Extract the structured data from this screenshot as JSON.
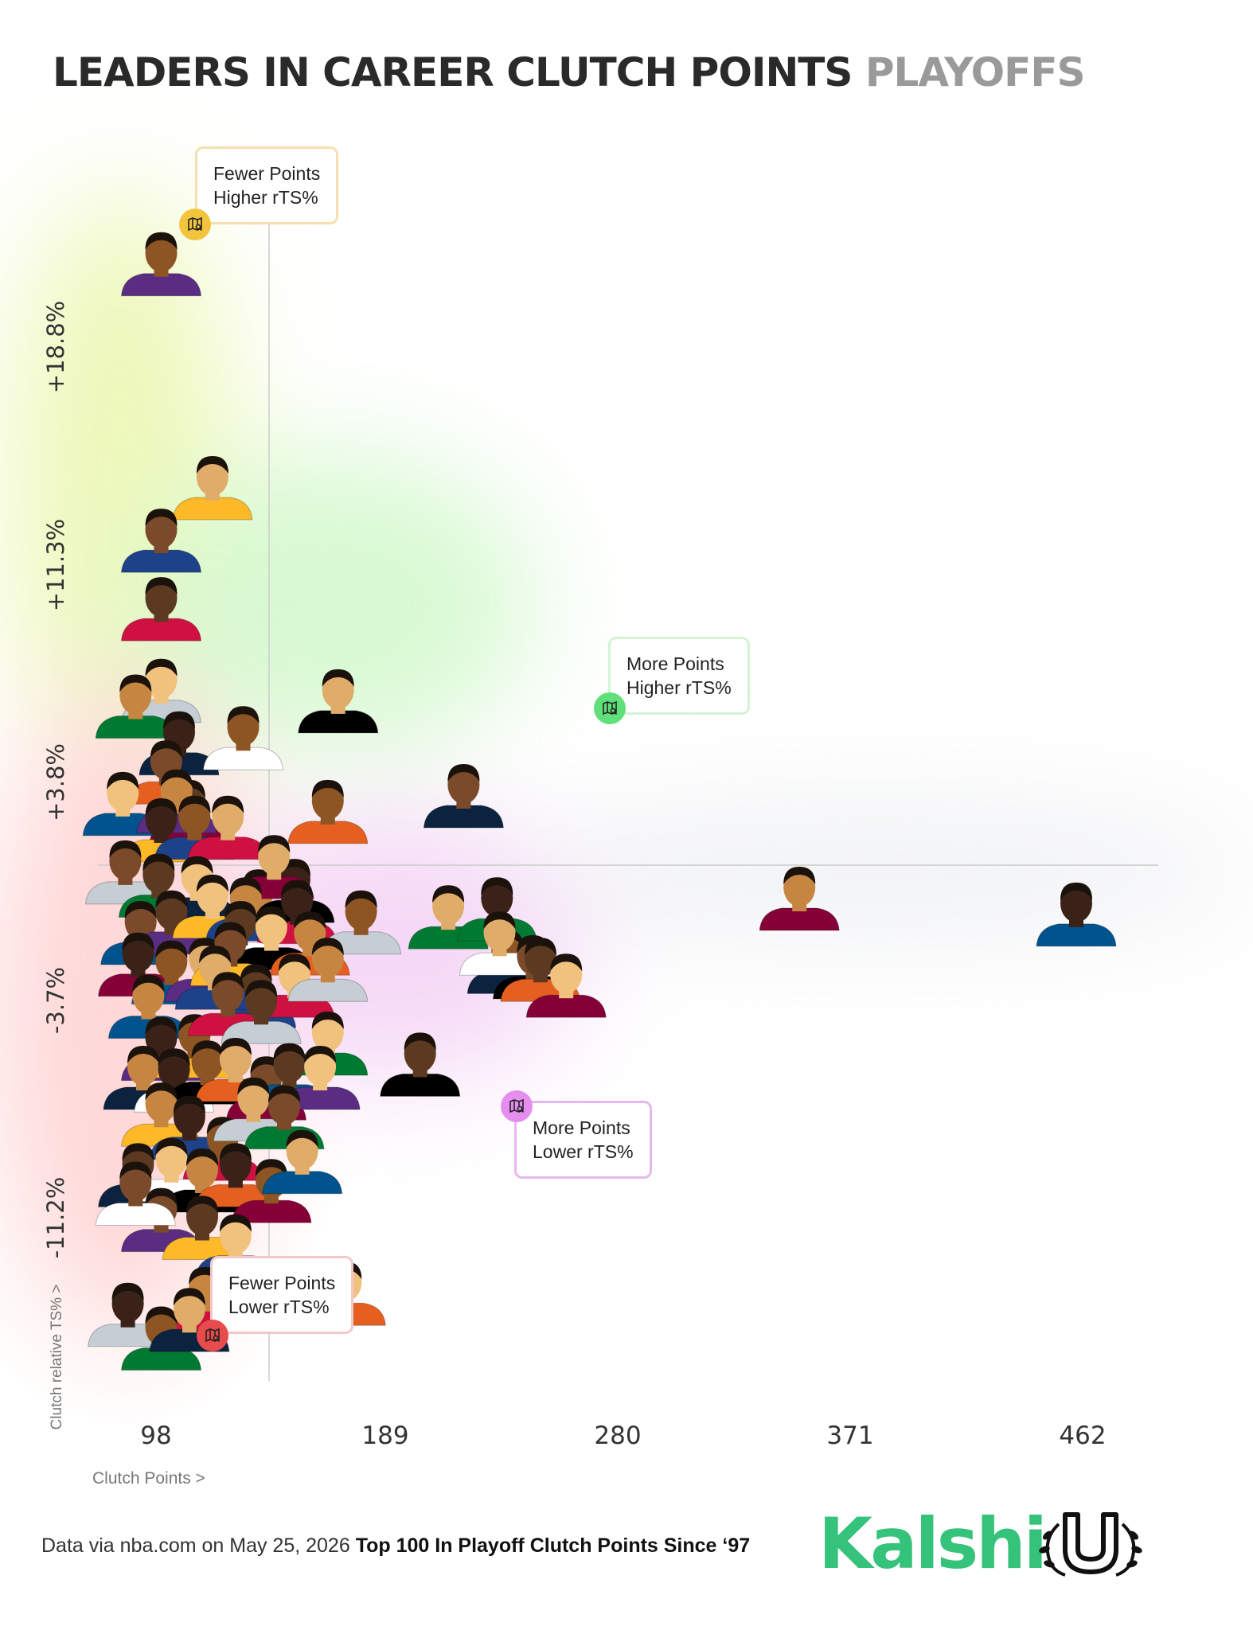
{
  "title": {
    "main": "LEADERS IN CAREER CLUTCH POINTS",
    "accent": "PLAYOFFS"
  },
  "callouts": {
    "top_left": {
      "line1": "Fewer Points",
      "line2": "Higher rTS%"
    },
    "top_right": {
      "line1": "More Points",
      "line2": "Higher rTS%"
    },
    "bottom_right": {
      "line1": "More Points",
      "line2": "Lower rTS%"
    },
    "bottom_left": {
      "line1": "Fewer Points",
      "line2": "Lower rTS%"
    }
  },
  "colors": {
    "yellow": "#f3c53f",
    "green": "#5fe07a",
    "magenta": "#e58ef0",
    "red": "#e84b4b",
    "border_yellow": "#f6dfae",
    "border_green": "#d3f3d3",
    "border_magenta": "#e9b7f0",
    "border_red": "#f3c8c8",
    "brand": "#35c27a"
  },
  "footer": {
    "source": "Data via nba.com on May 25, 2026",
    "caption": "Top 100 In Playoff Clutch Points Since ‘97"
  },
  "brand": {
    "name": "Kalshi"
  },
  "chart_data": {
    "type": "scatter",
    "title": "LEADERS IN CAREER CLUTCH POINTS PLAYOFFS",
    "xlabel": "Clutch Points >",
    "ylabel": "Clutch relative TS% >",
    "xticks": [
      "98",
      "189",
      "280",
      "371",
      "462"
    ],
    "yticks": [
      "+18.8%",
      "+11.3%",
      "+3.8%",
      "-3.7%",
      "-11.2%"
    ],
    "xlim": [
      88,
      502
    ],
    "ylim": [
      -17.6,
      28.5
    ],
    "reference_lines": {
      "x": 143,
      "y": 0
    },
    "grid": false,
    "legend": "none",
    "points": [
      {
        "x": 113,
        "y": 25.0
      },
      {
        "x": 133,
        "y": 16.5
      },
      {
        "x": 113,
        "y": 14.5
      },
      {
        "x": 113,
        "y": 11.9
      },
      {
        "x": 113,
        "y": 8.8
      },
      {
        "x": 103,
        "y": 8.2
      },
      {
        "x": 120,
        "y": 6.8
      },
      {
        "x": 145,
        "y": 7.0
      },
      {
        "x": 182,
        "y": 8.4
      },
      {
        "x": 115,
        "y": 5.7
      },
      {
        "x": 124,
        "y": 4.2
      },
      {
        "x": 98,
        "y": 4.5
      },
      {
        "x": 119,
        "y": 4.6
      },
      {
        "x": 113,
        "y": 3.5
      },
      {
        "x": 126,
        "y": 3.6
      },
      {
        "x": 139,
        "y": 3.6
      },
      {
        "x": 99,
        "y": 1.9
      },
      {
        "x": 112,
        "y": 1.4
      },
      {
        "x": 127,
        "y": 1.3
      },
      {
        "x": 151,
        "y": 0.8
      },
      {
        "x": 165,
        "y": 1.2
      },
      {
        "x": 178,
        "y": 4.2
      },
      {
        "x": 157,
        "y": 2.1
      },
      {
        "x": 105,
        "y": -0.4
      },
      {
        "x": 117,
        "y": 0.0
      },
      {
        "x": 133,
        "y": 0.6
      },
      {
        "x": 146,
        "y": 0.5
      },
      {
        "x": 166,
        "y": 0.4
      },
      {
        "x": 191,
        "y": 0.0
      },
      {
        "x": 225,
        "y": 0.2
      },
      {
        "x": 231,
        "y": 4.8
      },
      {
        "x": 144,
        "y": -0.4
      },
      {
        "x": 156,
        "y": -0.6
      },
      {
        "x": 171,
        "y": -0.8
      },
      {
        "x": 104,
        "y": -1.6
      },
      {
        "x": 117,
        "y": -1.9
      },
      {
        "x": 130,
        "y": -1.8
      },
      {
        "x": 140,
        "y": -1.2
      },
      {
        "x": 150,
        "y": -2.8
      },
      {
        "x": 165,
        "y": -2.4
      },
      {
        "x": 178,
        "y": -1.8
      },
      {
        "x": 244,
        "y": 0.5
      },
      {
        "x": 248,
        "y": -1.5
      },
      {
        "x": 245,
        "y": -0.8
      },
      {
        "x": 258,
        "y": -1.7
      },
      {
        "x": 261,
        "y": -1.8
      },
      {
        "x": 271,
        "y": -2.4
      },
      {
        "x": 108,
        "y": -3.2
      },
      {
        "x": 113,
        "y": -4.8
      },
      {
        "x": 126,
        "y": -4.7
      },
      {
        "x": 134,
        "y": -2.1
      },
      {
        "x": 139,
        "y": -3.1
      },
      {
        "x": 152,
        "y": -3.4
      },
      {
        "x": 178,
        "y": -4.6
      },
      {
        "x": 106,
        "y": -5.9
      },
      {
        "x": 118,
        "y": -6.0
      },
      {
        "x": 131,
        "y": -5.7
      },
      {
        "x": 142,
        "y": -5.6
      },
      {
        "x": 154,
        "y": -6.3
      },
      {
        "x": 163,
        "y": -5.8
      },
      {
        "x": 175,
        "y": -5.9
      },
      {
        "x": 113,
        "y": -7.3
      },
      {
        "x": 124,
        "y": -7.8
      },
      {
        "x": 137,
        "y": -8.6
      },
      {
        "x": 149,
        "y": -7.1
      },
      {
        "x": 161,
        "y": -7.4
      },
      {
        "x": 104,
        "y": -9.6
      },
      {
        "x": 117,
        "y": -9.4
      },
      {
        "x": 129,
        "y": -9.8
      },
      {
        "x": 142,
        "y": -9.6
      },
      {
        "x": 156,
        "y": -10.2
      },
      {
        "x": 168,
        "y": -9.1
      },
      {
        "x": 113,
        "y": -11.3
      },
      {
        "x": 129,
        "y": -11.6
      },
      {
        "x": 142,
        "y": -12.3
      },
      {
        "x": 130,
        "y": -14.3
      },
      {
        "x": 100,
        "y": -14.9
      },
      {
        "x": 113,
        "y": -15.8
      },
      {
        "x": 124,
        "y": -15.1
      },
      {
        "x": 103,
        "y": -10.3
      },
      {
        "x": 214,
        "y": -5.4
      },
      {
        "x": 185,
        "y": -14.1
      },
      {
        "x": 362,
        "y": 0.9
      },
      {
        "x": 470,
        "y": 0.3
      }
    ]
  }
}
